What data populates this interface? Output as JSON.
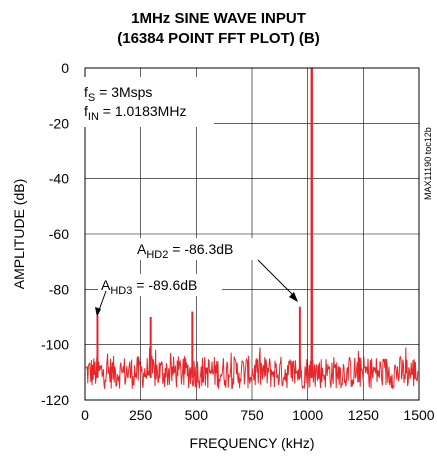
{
  "chart_data": {
    "type": "line",
    "title_line1": "1MHz SINE WAVE INPUT",
    "title_line2": "(16384 POINT FFT PLOT) (B)",
    "xlabel": "FREQUENCY (kHz)",
    "ylabel": "AMPLITUDE (dB)",
    "xlim": [
      0,
      1500
    ],
    "ylim": [
      -120,
      0
    ],
    "xticks": [
      0,
      250,
      500,
      750,
      1000,
      1250,
      1500
    ],
    "yticks": [
      0,
      -20,
      -40,
      -60,
      -80,
      -100,
      -120
    ],
    "grid": true,
    "series_color": "#e8262a",
    "noise_floor_db": -110,
    "peaks": [
      {
        "x": 56,
        "y": -89.6
      },
      {
        "x": 295,
        "y": -90
      },
      {
        "x": 482,
        "y": -88
      },
      {
        "x": 965,
        "y": -86.3
      },
      {
        "x": 1018.3,
        "y": 0
      }
    ],
    "annotations": {
      "fs_prefix": "f",
      "fs_sub": "S",
      "fs_value": " = 3Msps",
      "fin_prefix": "f",
      "fin_sub": "IN",
      "fin_value": " = 1.0183MHz",
      "ahd2_prefix": "A",
      "ahd2_sub": "HD2",
      "ahd2_value": " = -86.3dB",
      "ahd3_prefix": "A",
      "ahd3_sub": "HD3",
      "ahd3_value": " = -89.6dB",
      "code": "MAX11190 toc12b"
    }
  }
}
